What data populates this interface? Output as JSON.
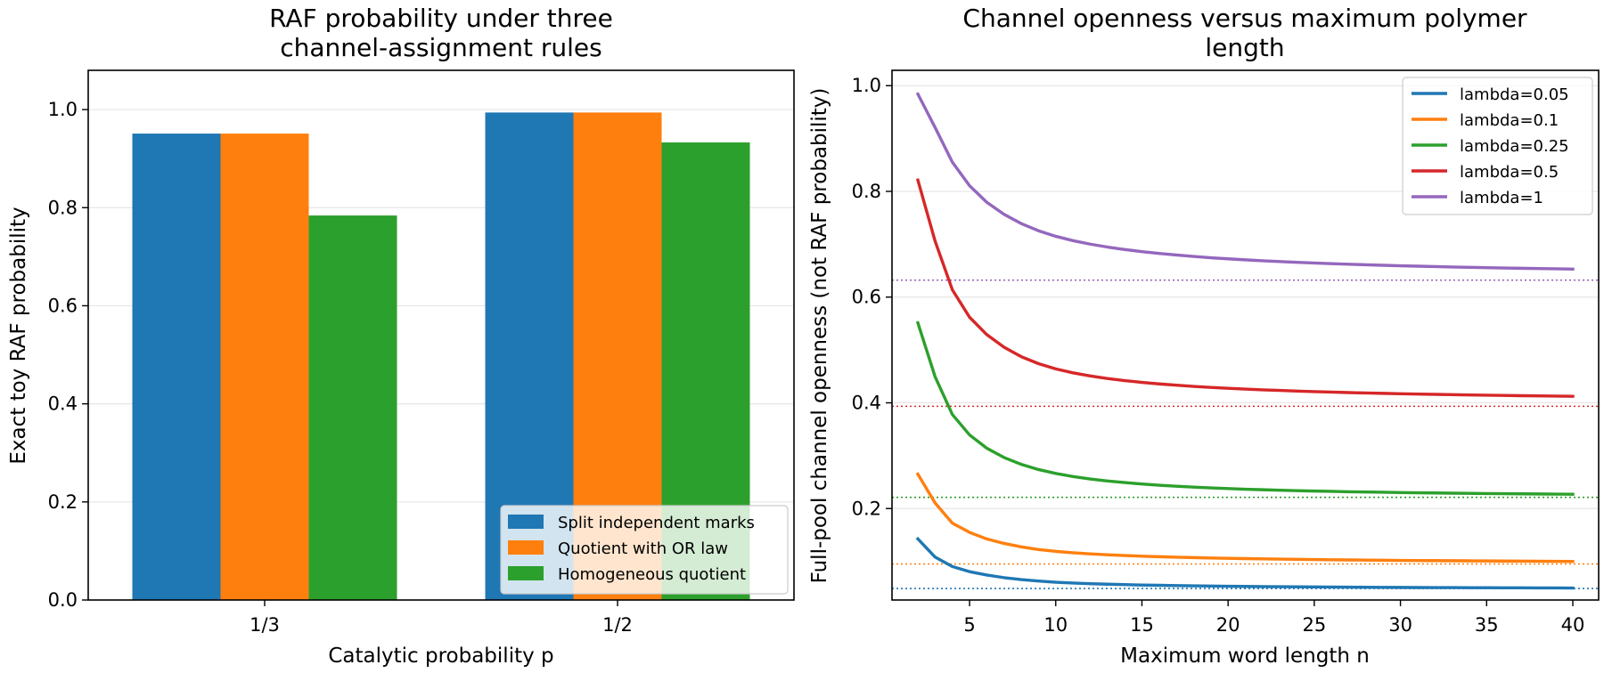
{
  "chart_data": [
    {
      "type": "bar",
      "title_lines": [
        "RAF probability under three",
        "channel-assignment rules"
      ],
      "xlabel": "Catalytic probability p",
      "ylabel": "Exact toy RAF probability",
      "categories": [
        "1/3",
        "1/2"
      ],
      "ylim": [
        0,
        1.08
      ],
      "yticks": [
        "0.0",
        "0.2",
        "0.4",
        "0.6",
        "0.8",
        "1.0"
      ],
      "grid": "horizontal",
      "legend_position": "lower-right",
      "series": [
        {
          "name": "Split independent marks",
          "color": "#1f77b4",
          "values": [
            0.951,
            0.994
          ]
        },
        {
          "name": "Quotient with OR law",
          "color": "#ff7f0e",
          "values": [
            0.951,
            0.994
          ]
        },
        {
          "name": "Homogeneous quotient",
          "color": "#2ca02c",
          "values": [
            0.784,
            0.933
          ]
        }
      ]
    },
    {
      "type": "line",
      "title_lines": [
        "Channel openness versus maximum polymer",
        "length"
      ],
      "xlabel": "Maximum word length n",
      "ylabel": "Full-pool channel openness (not RAF probability)",
      "xlim": [
        0.5,
        41.5
      ],
      "ylim": [
        0.027,
        1.029
      ],
      "xticks": [
        "5",
        "10",
        "15",
        "20",
        "25",
        "30",
        "35",
        "40"
      ],
      "yticks": [
        "0.2",
        "0.4",
        "0.6",
        "0.8",
        "1.0"
      ],
      "grid": "horizontal",
      "legend_position": "upper-right",
      "x": [
        2,
        3,
        4,
        5,
        6,
        7,
        8,
        9,
        10,
        11,
        12,
        13,
        14,
        15,
        16,
        17,
        18,
        19,
        20,
        21,
        22,
        23,
        24,
        25,
        26,
        27,
        28,
        29,
        30,
        31,
        32,
        33,
        34,
        35,
        36,
        37,
        38,
        39,
        40
      ],
      "series": [
        {
          "name": "lambda=0.05",
          "color": "#1f77b4",
          "asymptote": 0.0488,
          "values": [
            0.1427,
            0.1082,
            0.0903,
            0.0806,
            0.0742,
            0.0693,
            0.0656,
            0.0628,
            0.0606,
            0.0591,
            0.0579,
            0.0569,
            0.0561,
            0.0554,
            0.0548,
            0.0543,
            0.0538,
            0.0534,
            0.053,
            0.0527,
            0.0524,
            0.0521,
            0.0519,
            0.0517,
            0.0515,
            0.0513,
            0.0511,
            0.0509,
            0.0508,
            0.0506,
            0.0505,
            0.0504,
            0.0503,
            0.0502,
            0.0501,
            0.05,
            0.0499,
            0.0498,
            0.0497
          ]
        },
        {
          "name": "lambda=0.1",
          "color": "#ff7f0e",
          "asymptote": 0.0952,
          "values": [
            0.2651,
            0.2105,
            0.1725,
            0.1549,
            0.1425,
            0.134,
            0.1275,
            0.1225,
            0.119,
            0.1163,
            0.1142,
            0.1125,
            0.1111,
            0.1099,
            0.1089,
            0.108,
            0.1072,
            0.1065,
            0.1059,
            0.1053,
            0.1048,
            0.1043,
            0.1039,
            0.1035,
            0.1031,
            0.1028,
            0.1025,
            0.1022,
            0.1019,
            0.1017,
            0.1015,
            0.1013,
            0.1011,
            0.1009,
            0.1007,
            0.1005,
            0.1003,
            0.1002,
            0.1
          ]
        },
        {
          "name": "lambda=0.25",
          "color": "#2ca02c",
          "asymptote": 0.2212,
          "values": [
            0.5513,
            0.4494,
            0.378,
            0.3393,
            0.3141,
            0.2966,
            0.2836,
            0.2738,
            0.2664,
            0.2606,
            0.256,
            0.2522,
            0.2491,
            0.2464,
            0.2441,
            0.2422,
            0.2405,
            0.2391,
            0.2378,
            0.2366,
            0.2356,
            0.2347,
            0.2339,
            0.2331,
            0.2325,
            0.2318,
            0.2313,
            0.2308,
            0.2303,
            0.2299,
            0.2295,
            0.2291,
            0.2287,
            0.2284,
            0.2281,
            0.2278,
            0.2276,
            0.2273,
            0.2271
          ]
        },
        {
          "name": "lambda=0.5",
          "color": "#d62728",
          "asymptote": 0.3935,
          "values": [
            0.8214,
            0.7059,
            0.6139,
            0.5619,
            0.529,
            0.5052,
            0.4873,
            0.4741,
            0.4642,
            0.4567,
            0.4508,
            0.446,
            0.4421,
            0.4387,
            0.4358,
            0.4333,
            0.4311,
            0.4292,
            0.4275,
            0.426,
            0.4246,
            0.4234,
            0.4223,
            0.4212,
            0.4203,
            0.4194,
            0.4186,
            0.4179,
            0.4172,
            0.4166,
            0.416,
            0.4154,
            0.4149,
            0.4144,
            0.414,
            0.4135,
            0.4131,
            0.4127,
            0.4123
          ]
        },
        {
          "name": "lambda=1",
          "color": "#9467bd",
          "asymptote": 0.6321,
          "values": [
            0.9841,
            0.9209,
            0.8554,
            0.8107,
            0.7794,
            0.7566,
            0.7391,
            0.7255,
            0.715,
            0.7068,
            0.7002,
            0.6947,
            0.69,
            0.686,
            0.6826,
            0.6796,
            0.6769,
            0.6745,
            0.6724,
            0.6705,
            0.6688,
            0.6672,
            0.6658,
            0.6645,
            0.6633,
            0.6622,
            0.6612,
            0.6602,
            0.6593,
            0.6585,
            0.6577,
            0.657,
            0.6563,
            0.6557,
            0.6551,
            0.6545,
            0.654,
            0.6535,
            0.653
          ]
        }
      ]
    }
  ]
}
